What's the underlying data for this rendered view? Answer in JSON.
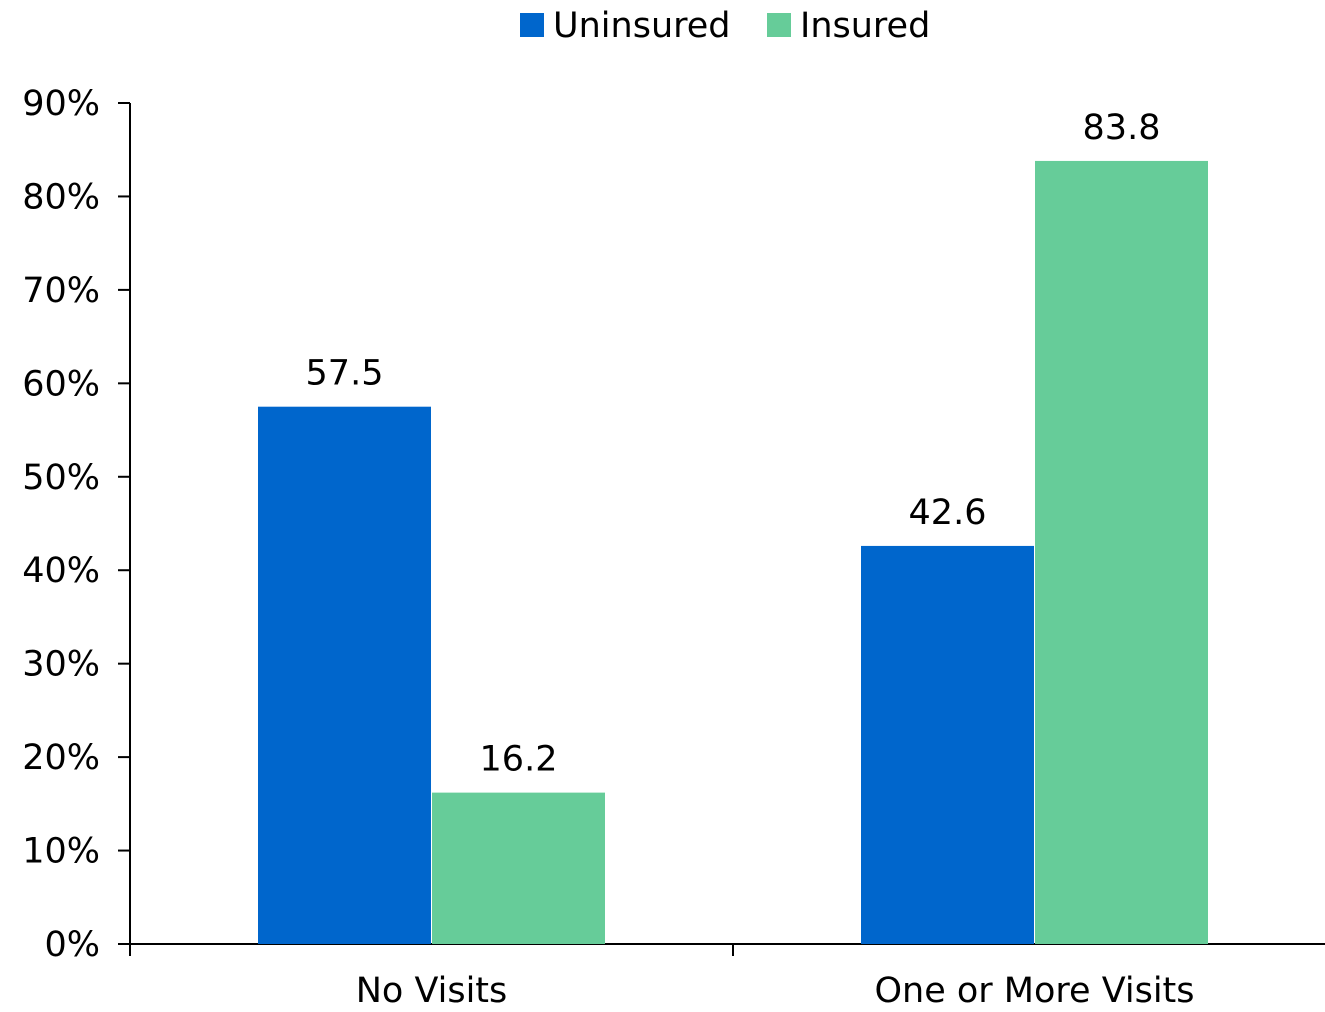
{
  "chart_data": {
    "type": "bar",
    "categories": [
      "No Visits",
      "One or More Visits"
    ],
    "series": [
      {
        "name": "Uninsured",
        "values": [
          57.5,
          42.6
        ],
        "color": "#0066CC"
      },
      {
        "name": "Insured",
        "values": [
          16.2,
          83.8
        ],
        "color": "#66CC99"
      }
    ],
    "data_labels": [
      [
        "57.5",
        "42.6"
      ],
      [
        "16.2",
        "83.8"
      ]
    ],
    "ylim": [
      0,
      90
    ],
    "yticks": [
      0,
      10,
      20,
      30,
      40,
      50,
      60,
      70,
      80,
      90
    ],
    "ytick_labels": [
      "0%",
      "10%",
      "20%",
      "30%",
      "40%",
      "50%",
      "60%",
      "70%",
      "80%",
      "90%"
    ],
    "legend_position": "top-center",
    "grid": false,
    "title": "",
    "xlabel": "",
    "ylabel": ""
  }
}
